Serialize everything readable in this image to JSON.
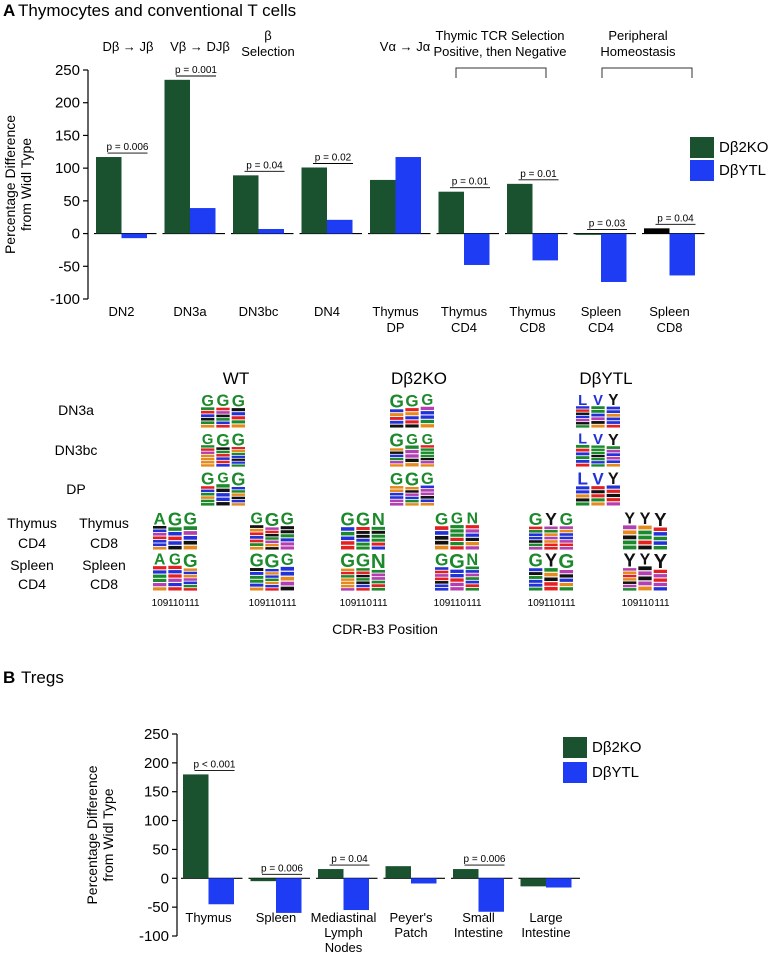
{
  "colors": {
    "ko": "#1a5230",
    "ytl": "#1f3cf5",
    "black": "#000000",
    "logo_green": "#1c8a2c",
    "logo_red": "#e32121",
    "logo_blue": "#2232d8",
    "logo_black": "#111111",
    "logo_purple": "#b33fb0",
    "logo_orange": "#e58a1f"
  },
  "panel_a": {
    "letter": "A",
    "title": "Thymocytes and conventional T cells",
    "stage_labels": [
      {
        "lines": [
          "Dβ → Jβ"
        ]
      },
      {
        "lines": [
          "Vβ → DJβ"
        ]
      },
      {
        "lines": [
          "β",
          "Selection"
        ]
      },
      {
        "lines": [
          "Vα → Jα"
        ]
      },
      {
        "lines": [
          "Thymic TCR Selection",
          "Positive, then Negative"
        ]
      },
      {
        "lines": [
          "Peripheral",
          "Homeostasis"
        ]
      }
    ],
    "logo": {
      "columns": [
        "WT",
        "Dβ2KO",
        "DβYTL"
      ],
      "row_labels": [
        "DN3a",
        "DN3bc",
        "DP"
      ],
      "row_labels_left": [
        "Thymus",
        "CD4",
        "Spleen",
        "CD4"
      ],
      "row_labels_right": [
        "Thymus",
        "CD8",
        "Spleen",
        "CD8"
      ],
      "positions": [
        "109",
        "110",
        "111"
      ],
      "xlabel": "CDR-B3 Position"
    }
  },
  "panel_b": {
    "letter": "B",
    "title": "Tregs"
  },
  "chart_data": [
    {
      "type": "bar",
      "title": "Thymocytes and conventional T cells",
      "ylabel": "Percentage Difference from Widl Type",
      "ylim": [
        -100,
        250
      ],
      "yticks": [
        250,
        200,
        150,
        100,
        50,
        0,
        -50,
        -100
      ],
      "legend": [
        "Dβ2KO",
        "DβYTL"
      ],
      "legend_position": "right",
      "categories": [
        [
          "DN2"
        ],
        [
          "DN3a"
        ],
        [
          "DN3bc"
        ],
        [
          "DN4"
        ],
        [
          "Thymus",
          "DP"
        ],
        [
          "Thymus",
          "CD4"
        ],
        [
          "Thymus",
          "CD8"
        ],
        [
          "Spleen",
          "CD4"
        ],
        [
          "Spleen",
          "CD8"
        ]
      ],
      "series": [
        {
          "name": "Dβ2KO",
          "values": [
            117,
            235,
            89,
            101,
            82,
            64,
            76,
            -2,
            8
          ]
        },
        {
          "name": "DβYTL",
          "values": [
            -7,
            39,
            7,
            21,
            117,
            -48,
            -41,
            -74,
            -64
          ]
        }
      ],
      "pvalues": [
        "p = 0.006",
        "p = 0.001",
        "p = 0.04",
        "p = 0.02",
        "",
        "p = 0.01",
        "p = 0.01",
        "p = 0.03",
        "p = 0.04"
      ]
    },
    {
      "type": "bar",
      "title": "Tregs",
      "ylabel": "Percentage Difference from Widl Type",
      "ylim": [
        -100,
        250
      ],
      "yticks": [
        250,
        200,
        150,
        100,
        50,
        0,
        -50,
        -100
      ],
      "legend": [
        "Dβ2KO",
        "DβYTL"
      ],
      "legend_position": "top-right",
      "categories": [
        [
          "Thymus"
        ],
        [
          "Spleen"
        ],
        [
          "Mediastinal",
          "Lymph",
          "Nodes"
        ],
        [
          "Peyer's",
          "Patch"
        ],
        [
          "Small",
          "Intestine"
        ],
        [
          "Large",
          "Intestine"
        ]
      ],
      "series": [
        {
          "name": "Dβ2KO",
          "values": [
            180,
            -5,
            16,
            21,
            16,
            -14
          ]
        },
        {
          "name": "DβYTL",
          "values": [
            -45,
            -60,
            -55,
            -9,
            -58,
            -16
          ]
        }
      ],
      "pvalues": [
        "p < 0.001",
        "p = 0.006",
        "p = 0.04",
        "",
        "p = 0.006",
        ""
      ]
    }
  ]
}
